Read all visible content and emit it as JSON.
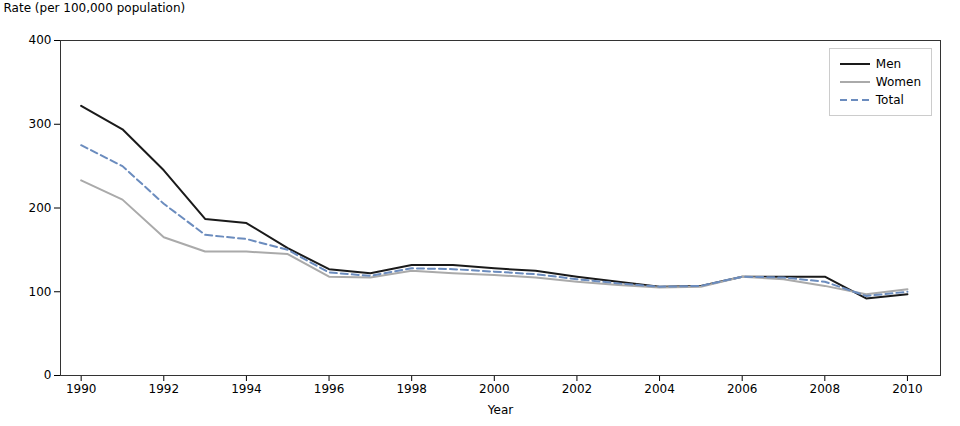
{
  "chart_data": {
    "type": "line",
    "x": [
      1990,
      1991,
      1992,
      1993,
      1994,
      1995,
      1996,
      1997,
      1998,
      1999,
      2000,
      2001,
      2002,
      2003,
      2004,
      2005,
      2006,
      2007,
      2008,
      2009,
      2010
    ],
    "series": [
      {
        "name": "Men",
        "color": "#1a1a1a",
        "line_style": "solid",
        "values": [
          322,
          294,
          245,
          187,
          182,
          152,
          127,
          122,
          132,
          132,
          128,
          125,
          118,
          112,
          106,
          107,
          118,
          118,
          118,
          92,
          97
        ]
      },
      {
        "name": "Women",
        "color": "#aaaaaa",
        "line_style": "solid",
        "values": [
          233,
          210,
          165,
          148,
          148,
          145,
          118,
          117,
          125,
          122,
          120,
          117,
          112,
          108,
          105,
          106,
          118,
          115,
          107,
          97,
          103
        ]
      },
      {
        "name": "Total",
        "color": "#6b8cbe",
        "line_style": "dashed",
        "values": [
          275,
          250,
          205,
          168,
          163,
          150,
          123,
          119,
          128,
          127,
          124,
          121,
          115,
          110,
          106,
          107,
          118,
          117,
          112,
          95,
          100
        ]
      }
    ],
    "xlabel": "Year",
    "ylabel": "Rate (per 100,000 population)",
    "xlim": [
      1989.5,
      2010.8
    ],
    "xticks": [
      1990,
      1992,
      1994,
      1996,
      1998,
      2000,
      2002,
      2004,
      2006,
      2008,
      2010
    ],
    "ylim": [
      0,
      400
    ],
    "yticks": [
      0,
      100,
      200,
      300,
      400
    ],
    "grid": false,
    "legend": "upper right"
  }
}
